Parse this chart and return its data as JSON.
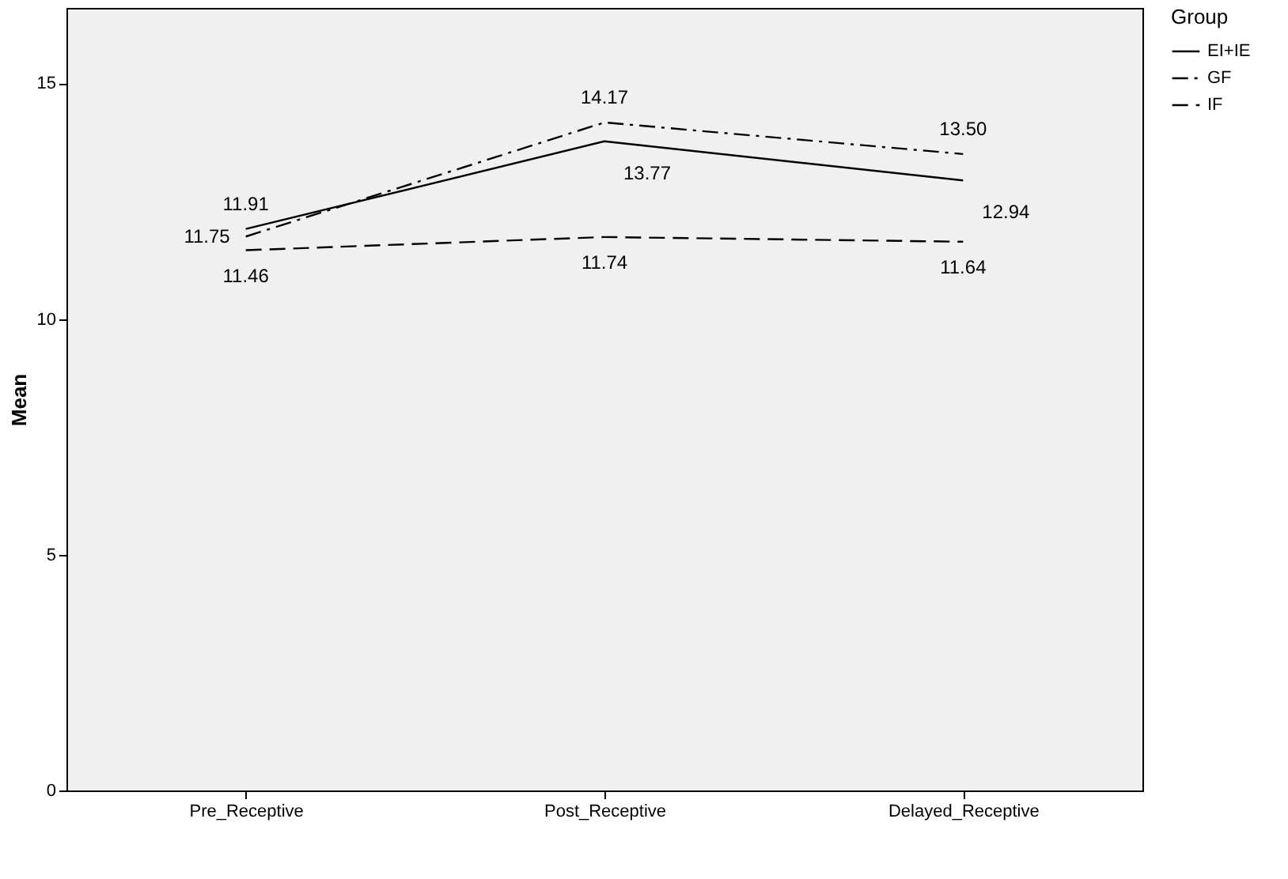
{
  "chart_data": {
    "type": "line",
    "ylabel": "Mean",
    "legend_title": "Group",
    "categories": [
      "Pre_Receptive",
      "Post_Receptive",
      "Delayed_Receptive"
    ],
    "series": [
      {
        "name": "EI+IE",
        "color": "#000000",
        "line_style": "solid",
        "values": [
          11.91,
          13.77,
          12.94
        ],
        "value_labels": [
          "11.91",
          "13.77",
          "12.94"
        ]
      },
      {
        "name": "GF",
        "color": "#000000",
        "line_style": "dotted",
        "values": [
          11.75,
          14.17,
          13.5
        ],
        "value_labels": [
          "11.75",
          "14.17",
          "13.50"
        ]
      },
      {
        "name": "IF",
        "color": "#000000",
        "line_style": "dashed",
        "values": [
          11.46,
          11.74,
          11.64
        ],
        "value_labels": [
          "11.46",
          "11.74",
          "11.64"
        ]
      }
    ],
    "ylim": [
      0,
      16.6
    ],
    "yticks": [
      0,
      5,
      10,
      15
    ],
    "grid": false,
    "legend": "top right"
  }
}
